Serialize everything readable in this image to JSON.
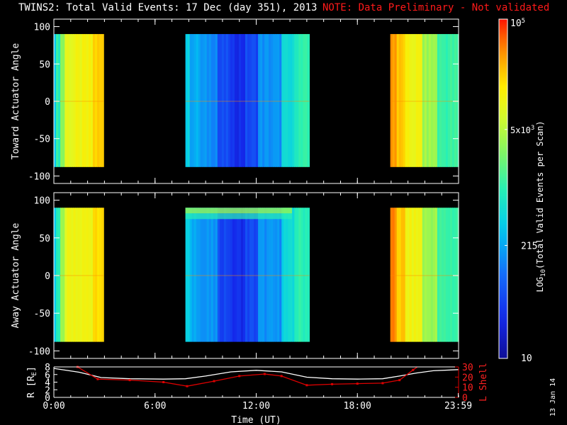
{
  "header": {
    "title": "TWINS2: Total Valid Events: 17 Dec (day 351), 2013",
    "note": "NOTE: Data Preliminary - Not validated",
    "note_color": "#ff1a1a"
  },
  "stamp": "13 Jan 14",
  "chart_data": [
    {
      "type": "heatmap",
      "panel": "top",
      "ylabel": "Toward Actuator Angle",
      "ylim": [
        -110,
        110
      ],
      "yticks": [
        "100",
        "50",
        "0",
        "-50",
        "-100"
      ],
      "x_unit": "hours UT",
      "xlim": [
        0,
        24
      ],
      "angle_range": [
        -88,
        90
      ],
      "segments": [
        {
          "start": 0.0,
          "end": 2.95,
          "profile": "dawn"
        },
        {
          "start": 7.8,
          "end": 15.15,
          "profile": "noon"
        },
        {
          "start": 19.95,
          "end": 24.0,
          "profile": "dusk"
        }
      ]
    },
    {
      "type": "heatmap",
      "panel": "middle",
      "ylabel": "Away Actuator Angle",
      "ylim": [
        -110,
        110
      ],
      "yticks": [
        "100",
        "50",
        "0",
        "-50",
        "-100"
      ],
      "x_unit": "hours UT",
      "xlim": [
        0,
        24
      ],
      "angle_range": [
        -88,
        90
      ],
      "segments": [
        {
          "start": 0.0,
          "end": 2.95,
          "profile": "dawn"
        },
        {
          "start": 7.8,
          "end": 15.15,
          "profile": "noon"
        },
        {
          "start": 19.95,
          "end": 24.0,
          "profile": "dusk"
        }
      ]
    },
    {
      "type": "line",
      "panel": "bottom",
      "xlabel": "Time (UT)",
      "xticks": [
        "0:00",
        "6:00",
        "12:00",
        "18:00",
        "23:59"
      ],
      "ylabel_left": "R [R",
      "ylabel_left_sub": "E",
      "ylabel_left_end": "]",
      "ylim_left": [
        0,
        8
      ],
      "yticks_left": [
        "8",
        "6",
        "4",
        "2",
        "0"
      ],
      "ylabel_right": "L Shell",
      "ylim_right": [
        0,
        30
      ],
      "yticks_right": [
        "30",
        "20",
        "10",
        "0"
      ],
      "series": [
        {
          "axis": "left",
          "color": "#ffffff",
          "x": [
            0.0,
            1.5,
            2.8,
            4.5,
            6.5,
            7.8,
            9.0,
            10.5,
            12.0,
            13.5,
            15.0,
            16.5,
            18.0,
            19.5,
            20.5,
            21.5,
            22.5,
            24.0
          ],
          "y": [
            7.6,
            6.6,
            5.2,
            4.9,
            4.8,
            4.9,
            5.6,
            6.7,
            7.1,
            6.7,
            5.3,
            4.9,
            4.8,
            4.9,
            5.6,
            6.4,
            7.0,
            7.3
          ]
        },
        {
          "axis": "right",
          "color": "#dd0000",
          "x": [
            1.4,
            2.6,
            4.5,
            6.5,
            7.9,
            9.5,
            11.0,
            12.5,
            13.5,
            15.0,
            16.5,
            18.0,
            19.5,
            20.5,
            21.3,
            21.8
          ],
          "y": [
            30,
            18,
            17,
            15,
            11,
            16,
            21,
            23,
            21,
            12,
            13,
            13.5,
            14,
            17,
            27,
            33
          ]
        }
      ]
    }
  ],
  "colorbar": {
    "label_main": "LOG",
    "label_sub": "10",
    "label_rest": "(Total Valid Events per Scan)",
    "tick_top_base": "10",
    "tick_top_exp": "5",
    "tick_mid_mant": "5x",
    "tick_mid_base": "10",
    "tick_mid_exp": "3",
    "tick_low": "215",
    "tick_bottom": "10",
    "log_min": 1.0,
    "log_max": 5.0,
    "log_mid": 3.699,
    "log_low": 2.332
  }
}
